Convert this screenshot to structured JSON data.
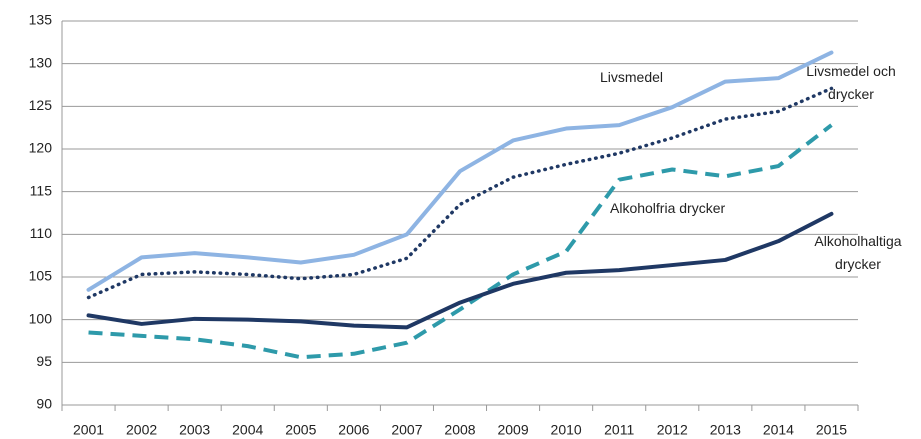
{
  "chart_data": {
    "type": "line",
    "categories": [
      "2001",
      "2002",
      "2003",
      "2004",
      "2005",
      "2006",
      "2007",
      "2008",
      "2009",
      "2010",
      "2011",
      "2012",
      "2013",
      "2014",
      "2015"
    ],
    "series": [
      {
        "color": "#8eb4e3",
        "style": "solid",
        "values": [
          103.5,
          107.3,
          107.8,
          107.3,
          106.7,
          107.6,
          110,
          117.4,
          121,
          122.4,
          122.8,
          124.9,
          127.9,
          128.3,
          131.3
        ]
      },
      {
        "color": "#1f3864",
        "style": "dotted",
        "values": [
          102.6,
          105.3,
          105.6,
          105.3,
          104.8,
          105.3,
          107.2,
          113.5,
          116.7,
          118.2,
          119.5,
          121.3,
          123.5,
          124.4,
          127.1
        ]
      },
      {
        "color": "#2e9aaa",
        "style": "dashed",
        "values": [
          98.5,
          98.1,
          97.7,
          96.9,
          95.6,
          96,
          97.3,
          101.2,
          105.3,
          108,
          116.4,
          117.6,
          116.8,
          118,
          122.8
        ]
      },
      {
        "color": "#1f3864",
        "style": "solid",
        "values": [
          100.5,
          99.5,
          100.1,
          100,
          99.8,
          99.3,
          99.1,
          102,
          104.2,
          105.5,
          105.8,
          106.4,
          107,
          109.2,
          112.4
        ]
      }
    ],
    "annotations": [
      {
        "lines": [
          "Livsmedel"
        ]
      },
      {
        "lines": [
          "Livsmedel och",
          "drycker"
        ]
      },
      {
        "lines": [
          "Alkoholfria drycker"
        ]
      },
      {
        "lines": [
          "Alkoholhaltiga",
          "drycker"
        ]
      }
    ],
    "ylim": [
      90,
      135
    ],
    "yticks": [
      90,
      95,
      100,
      105,
      110,
      115,
      120,
      125,
      130,
      135
    ],
    "grid": true
  }
}
